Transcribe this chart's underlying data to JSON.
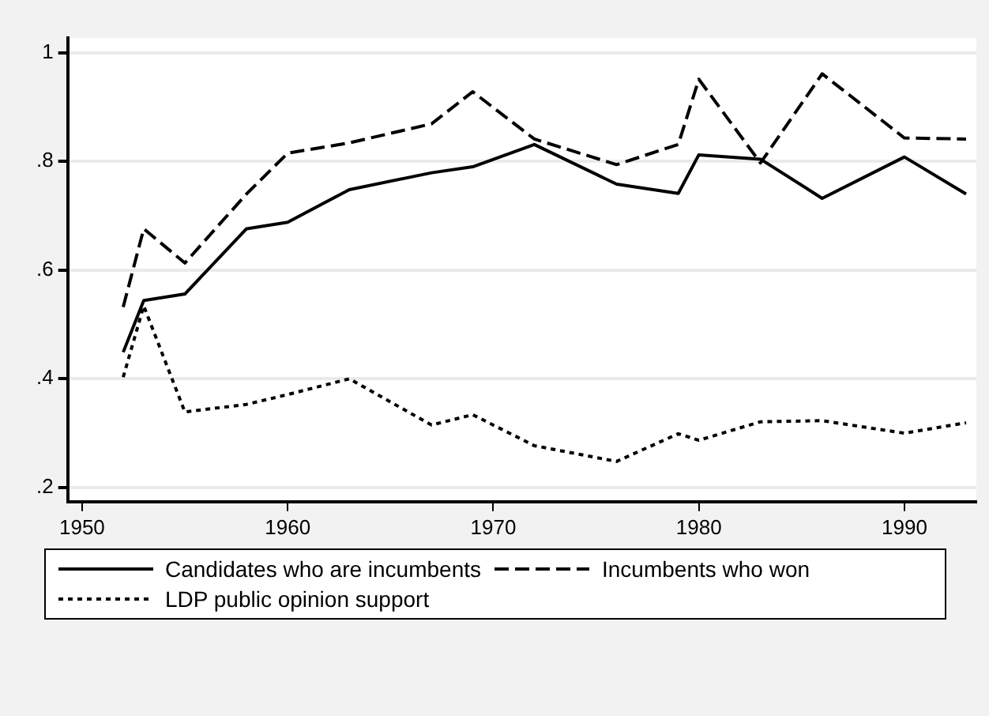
{
  "chart_data": {
    "type": "line",
    "x": [
      1952,
      1953,
      1955,
      1958,
      1960,
      1963,
      1967,
      1969,
      1972,
      1976,
      1979,
      1980,
      1983,
      1986,
      1990,
      1993
    ],
    "series": [
      {
        "name": "Candidates who are incumbents",
        "color": "#000000",
        "line_style": "solid",
        "values": [
          0.449,
          0.544,
          0.556,
          0.676,
          0.688,
          0.748,
          0.779,
          0.79,
          0.831,
          0.758,
          0.741,
          0.812,
          0.804,
          0.732,
          0.808,
          0.74
        ]
      },
      {
        "name": "Incumbents who won",
        "color": "#000000",
        "line_style": "dashed",
        "values": [
          0.532,
          0.676,
          0.613,
          0.74,
          0.815,
          0.834,
          0.869,
          0.928,
          0.841,
          0.794,
          0.831,
          0.951,
          0.797,
          0.961,
          0.843,
          0.841
        ]
      },
      {
        "name": "LDP public opinion support",
        "color": "#000000",
        "line_style": "dotted",
        "values": [
          0.403,
          0.534,
          0.339,
          0.353,
          0.371,
          0.4,
          0.315,
          0.334,
          0.277,
          0.248,
          0.299,
          0.287,
          0.321,
          0.323,
          0.3,
          0.319
        ]
      }
    ],
    "xlim": [
      1949.3,
      1993.5
    ],
    "xticks": [
      1950,
      1960,
      1970,
      1980,
      1990
    ],
    "ylim": [
      0.174,
      1.027
    ],
    "yticks": [
      {
        "value": 0.2,
        "label": ".2"
      },
      {
        "value": 0.4,
        "label": ".4"
      },
      {
        "value": 0.6,
        "label": ".6"
      },
      {
        "value": 0.8,
        "label": ".8"
      },
      {
        "value": 1,
        "label": "1"
      }
    ],
    "grid": "y",
    "legend": "bottom",
    "marker": "none"
  }
}
